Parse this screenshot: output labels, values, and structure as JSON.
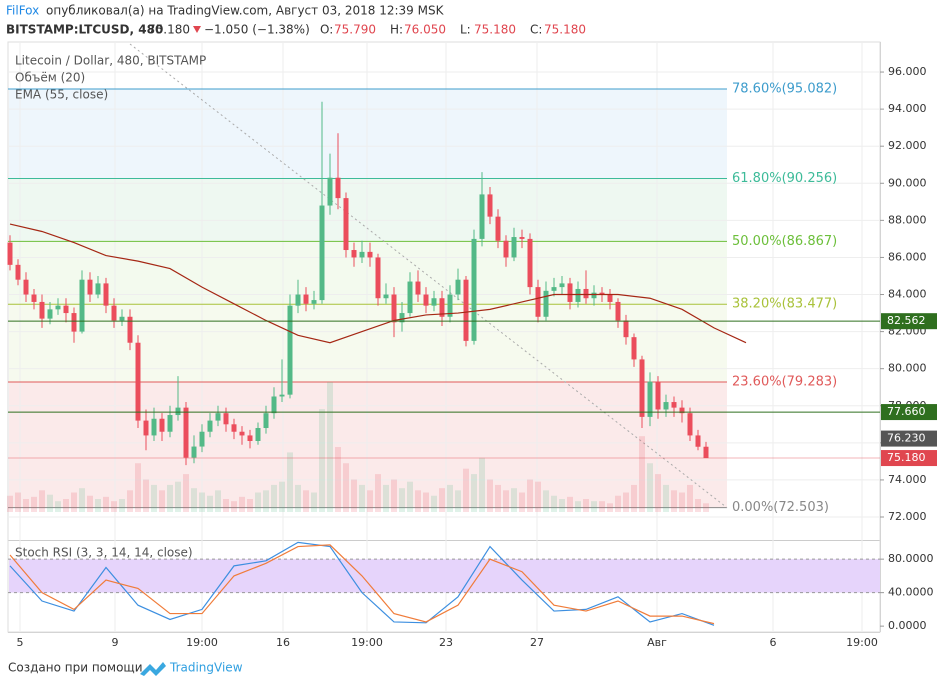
{
  "chart_data": {
    "type": "candlestick",
    "header": {
      "author": "FilFox",
      "published": "опубликовал(а) на TradingView.com, Август 03, 2018 12:39 MSK",
      "symbol": "BITSTAMP:LTCUSD, 480",
      "last": "75.180",
      "change": "−1.050 (−1.38%)",
      "ohlc_labels": [
        "O:",
        "H:",
        "L:",
        "C:"
      ],
      "ohlc_values": [
        "75.790",
        "76.050",
        "75.180",
        "75.180"
      ]
    },
    "legend": [
      "Litecoin / Dollar, 480, BITSTAMP",
      "Объём (20)",
      "EMA (55, close)"
    ],
    "up_color": "#53b987",
    "down_color": "#eb4d5c",
    "open": [
      86.8,
      85.6,
      84.8,
      84.0,
      83.6,
      82.7,
      83.2,
      83.4,
      83.0,
      82.0,
      84.8,
      84.0,
      84.6,
      83.4,
      82.6,
      82.8,
      81.4,
      77.2,
      76.4,
      77.3,
      76.6,
      77.5,
      77.9,
      75.2,
      75.8,
      76.6,
      77.2,
      77.6,
      77.0,
      76.6,
      76.4,
      76.1,
      76.8,
      77.6,
      78.5,
      78.6,
      83.4,
      84.0,
      83.5,
      83.7,
      88.8,
      90.3,
      89.2,
      86.4,
      86.0,
      86.3,
      86.0,
      83.8,
      84.0,
      82.5,
      83.0,
      84.7,
      84.0,
      83.4,
      83.8,
      82.8,
      84.0,
      84.8,
      81.5,
      87.0,
      89.4,
      88.2,
      86.9,
      86.0,
      87.1,
      87.0,
      84.4,
      82.8,
      84.2,
      84.4,
      84.6,
      83.6,
      84.3,
      83.8,
      84.1,
      84.0,
      83.6,
      82.6,
      81.7,
      80.5,
      77.4,
      79.3,
      77.8,
      78.2,
      77.9,
      77.6,
      76.4,
      75.79
    ],
    "high": [
      87.2,
      85.9,
      85.2,
      84.3,
      84.0,
      83.6,
      83.8,
      83.8,
      83.3,
      85.3,
      85.2,
      85.0,
      84.9,
      83.8,
      83.2,
      83.2,
      81.8,
      77.8,
      77.9,
      77.6,
      78.0,
      79.6,
      78.2,
      76.4,
      77.0,
      77.6,
      78.0,
      77.9,
      77.3,
      76.9,
      76.7,
      77.1,
      78.0,
      79.0,
      80.5,
      84.0,
      84.8,
      84.4,
      84.2,
      94.4,
      91.6,
      92.7,
      89.5,
      86.8,
      86.9,
      86.8,
      86.2,
      84.6,
      84.4,
      83.6,
      85.2,
      85.3,
      84.4,
      84.2,
      84.2,
      84.5,
      85.4,
      85.0,
      87.5,
      90.6,
      89.8,
      88.6,
      87.2,
      87.6,
      87.5,
      87.3,
      84.8,
      84.7,
      84.9,
      85.0,
      84.9,
      84.7,
      85.3,
      84.5,
      84.4,
      84.3,
      83.8,
      82.9,
      81.9,
      80.7,
      79.8,
      79.6,
      78.6,
      78.5,
      78.3,
      77.9,
      76.7,
      76.05
    ],
    "low": [
      85.3,
      84.5,
      83.6,
      83.2,
      82.2,
      82.4,
      82.9,
      82.5,
      81.4,
      81.9,
      83.6,
      83.8,
      83.0,
      82.2,
      82.3,
      81.0,
      76.8,
      75.6,
      76.1,
      76.1,
      76.3,
      77.2,
      74.8,
      74.9,
      75.5,
      76.3,
      76.9,
      76.6,
      76.2,
      75.9,
      75.7,
      75.9,
      76.5,
      77.3,
      78.2,
      78.4,
      83.0,
      83.1,
      83.2,
      83.5,
      88.3,
      88.6,
      86.0,
      85.5,
      85.7,
      85.5,
      83.4,
      83.5,
      81.7,
      82.0,
      82.8,
      83.6,
      83.0,
      83.1,
      82.3,
      82.5,
      83.7,
      81.2,
      81.3,
      86.6,
      87.8,
      86.5,
      85.5,
      85.8,
      86.5,
      84.0,
      82.5,
      82.6,
      83.9,
      84.0,
      83.2,
      83.3,
      83.5,
      83.4,
      83.6,
      83.2,
      82.2,
      81.3,
      80.1,
      76.8,
      76.9,
      77.3,
      77.4,
      77.4,
      77.1,
      76.1,
      75.6,
      75.18
    ],
    "close": [
      85.6,
      84.8,
      84.0,
      83.6,
      82.7,
      83.2,
      83.4,
      83.0,
      82.0,
      84.8,
      84.0,
      84.6,
      83.4,
      82.6,
      82.8,
      81.4,
      77.2,
      76.4,
      77.3,
      76.6,
      77.5,
      77.9,
      75.2,
      75.8,
      76.6,
      77.2,
      77.6,
      77.0,
      76.6,
      76.4,
      76.1,
      76.8,
      77.6,
      78.5,
      78.6,
      83.4,
      84.0,
      83.5,
      83.7,
      88.8,
      90.3,
      89.2,
      86.4,
      86.0,
      86.3,
      86.0,
      83.8,
      84.0,
      82.5,
      83.0,
      84.7,
      84.0,
      83.4,
      83.8,
      82.8,
      84.0,
      84.8,
      81.5,
      87.0,
      89.4,
      88.2,
      86.9,
      86.0,
      87.1,
      87.0,
      84.4,
      82.8,
      84.2,
      84.4,
      84.6,
      83.6,
      84.3,
      83.8,
      84.1,
      84.0,
      83.6,
      82.6,
      81.7,
      80.5,
      77.4,
      79.3,
      77.8,
      78.2,
      77.9,
      77.6,
      76.4,
      75.79,
      75.18
    ],
    "volume": [
      15,
      18,
      12,
      14,
      20,
      16,
      10,
      12,
      18,
      22,
      15,
      12,
      14,
      10,
      12,
      20,
      45,
      30,
      25,
      20,
      25,
      28,
      35,
      22,
      18,
      15,
      20,
      12,
      10,
      14,
      12,
      18,
      20,
      25,
      28,
      55,
      25,
      20,
      18,
      95,
      120,
      60,
      45,
      30,
      25,
      20,
      35,
      25,
      30,
      22,
      28,
      20,
      18,
      15,
      22,
      25,
      20,
      40,
      35,
      50,
      30,
      25,
      20,
      22,
      18,
      30,
      28,
      20,
      15,
      12,
      14,
      10,
      12,
      10,
      10,
      8,
      15,
      18,
      25,
      70,
      45,
      35,
      25,
      20,
      18,
      25,
      12,
      8
    ],
    "ema": {
      "color": "#a52714",
      "x": [
        0,
        4,
        8,
        12,
        16,
        20,
        24,
        28,
        32,
        36,
        40,
        44,
        48,
        52,
        56,
        60,
        64,
        68,
        72,
        76,
        80,
        84,
        88,
        92
      ],
      "values": [
        87.8,
        87.4,
        86.8,
        86.1,
        85.8,
        85.4,
        84.4,
        83.5,
        82.6,
        81.8,
        81.4,
        82.0,
        82.6,
        82.9,
        83.0,
        83.2,
        83.6,
        84.0,
        84.0,
        84.0,
        83.8,
        83.2,
        82.2,
        81.4
      ]
    },
    "ylim": [
      70.76,
      97.62
    ],
    "yticks": [
      {
        "value": 72,
        "label": "72.000"
      },
      {
        "value": 74,
        "label": "74.000"
      },
      {
        "value": 76,
        "label": "76.000"
      },
      {
        "value": 78,
        "label": "78.000"
      },
      {
        "value": 80,
        "label": "80.000"
      },
      {
        "value": 82,
        "label": "82.000"
      },
      {
        "value": 84,
        "label": "84.000"
      },
      {
        "value": 86,
        "label": "86.000"
      },
      {
        "value": 88,
        "label": "88.000"
      },
      {
        "value": 90,
        "label": "90.000"
      },
      {
        "value": 92,
        "label": "92.000"
      },
      {
        "value": 94,
        "label": "94.000"
      },
      {
        "value": 96,
        "label": "96.000"
      }
    ],
    "fib_levels": [
      {
        "value": 95.082,
        "label": "78.60%(95.082)",
        "color": "#3d9ccc",
        "fill": "#eef6fc"
      },
      {
        "value": 90.256,
        "label": "61.80%(90.256)",
        "color": "#3dbb99",
        "fill": "#eef8f1"
      },
      {
        "value": 86.867,
        "label": "50.00%(86.867)",
        "color": "#6cbf3a",
        "fill": "#f3faee"
      },
      {
        "value": 83.477,
        "label": "38.20%(83.477)",
        "color": "#a9c23a",
        "fill": "#f6faee"
      },
      {
        "value": 79.283,
        "label": "23.60%(79.283)",
        "color": "#e05a5a",
        "fill": "#fbeaea"
      },
      {
        "value": 72.503,
        "label": "0.00%(72.503)",
        "color": "#888888"
      }
    ],
    "price_labels": [
      {
        "value": 82.562,
        "label": "82.562",
        "color": "#2f6f1f",
        "line": true
      },
      {
        "value": 77.66,
        "label": "77.660",
        "color": "#2f6f1f",
        "line": true
      },
      {
        "value": 76.23,
        "label": "76.230",
        "color": "#555555",
        "line": false
      },
      {
        "value": 75.18,
        "label": "75.180",
        "color": "#e0464f",
        "line": true
      }
    ],
    "time_labels": [
      "5",
      "9",
      "19:00",
      "16",
      "19:00",
      "23",
      "27",
      "Авг",
      "6",
      "19:00"
    ],
    "stoch": {
      "title": "Stoch RSI (3, 3, 14, 14, close)",
      "ylim": [
        -7,
        100
      ],
      "yticks": [
        {
          "value": 80,
          "label": "80.0000"
        },
        {
          "value": 40,
          "label": "40.0000"
        },
        {
          "value": 0,
          "label": "0.0000"
        }
      ],
      "x": [
        0,
        4,
        8,
        12,
        16,
        20,
        24,
        28,
        32,
        36,
        40,
        44,
        48,
        52,
        56,
        60,
        64,
        68,
        72,
        76,
        80,
        84,
        88
      ],
      "series": [
        {
          "name": "K",
          "color": "#3d8fe0",
          "values": [
            72,
            30,
            18,
            70,
            25,
            8,
            20,
            72,
            78,
            100,
            95,
            40,
            5,
            4,
            35,
            95,
            55,
            18,
            20,
            35,
            5,
            15,
            1
          ]
        },
        {
          "name": "D",
          "color": "#f07c3a",
          "values": [
            85,
            40,
            20,
            55,
            45,
            15,
            15,
            60,
            75,
            95,
            97,
            60,
            15,
            5,
            25,
            80,
            65,
            25,
            18,
            30,
            12,
            12,
            3
          ]
        }
      ]
    },
    "footer": {
      "made_with": "Создано при помощи",
      "brand": "TradingView"
    }
  }
}
